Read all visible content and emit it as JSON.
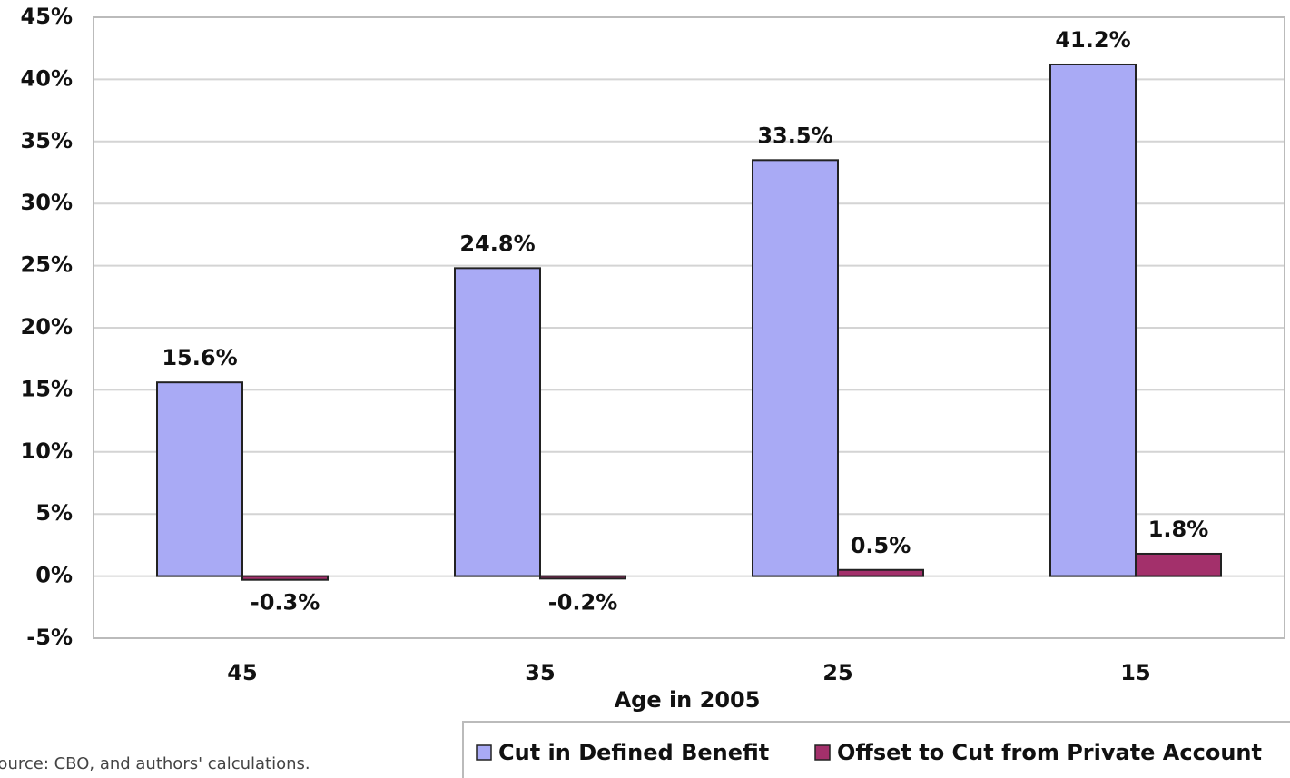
{
  "chart_data": {
    "type": "bar",
    "x_label": "Age in 2005",
    "source": "Source: CBO, and authors' calculations.",
    "categories": [
      "45",
      "35",
      "25",
      "15"
    ],
    "series": [
      {
        "name": "Cut in Defined Benefit",
        "color": "#a9aaf5",
        "values": [
          15.6,
          24.8,
          33.5,
          41.2
        ],
        "value_labels": [
          "15.6%",
          "24.8%",
          "33.5%",
          "41.2%"
        ]
      },
      {
        "name": "Offset to Cut from Private Account",
        "color": "#a3306b",
        "values": [
          -0.3,
          -0.2,
          0.5,
          1.8
        ],
        "value_labels": [
          "-0.3%",
          "-0.2%",
          "0.5%",
          "1.8%"
        ]
      }
    ],
    "ylim": [
      -5,
      45
    ],
    "yticks": [
      {
        "value": -5,
        "label": "-5%"
      },
      {
        "value": 0,
        "label": "0%"
      },
      {
        "value": 5,
        "label": "5%"
      },
      {
        "value": 10,
        "label": "10%"
      },
      {
        "value": 15,
        "label": "15%"
      },
      {
        "value": 20,
        "label": "20%"
      },
      {
        "value": 25,
        "label": "25%"
      },
      {
        "value": 30,
        "label": "30%"
      },
      {
        "value": 35,
        "label": "35%"
      },
      {
        "value": 40,
        "label": "40%"
      },
      {
        "value": 45,
        "label": "45%"
      }
    ],
    "grid": true,
    "legend": "bottom-right"
  }
}
